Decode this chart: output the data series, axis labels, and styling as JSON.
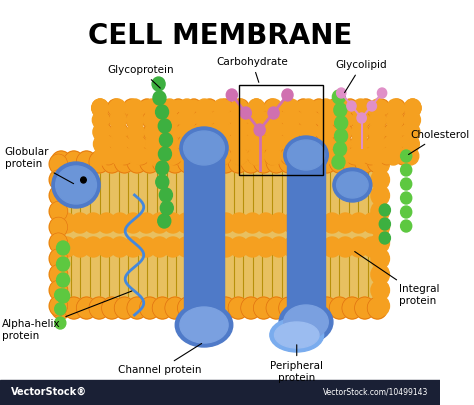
{
  "title": "CELL MEMBRANE",
  "title_fontsize": 20,
  "title_fontweight": "bold",
  "bg_color": "#ffffff",
  "orange_head": "#F5A020",
  "orange_dark": "#E07010",
  "orange_mid": "#F0B030",
  "tail_color": "#D4A855",
  "tail_bg": "#E8C870",
  "protein_blue": "#4F7AC8",
  "protein_blue_light": "#6B95D8",
  "green_chain": "#3DB040",
  "green_bright": "#5DC840",
  "pink_chain": "#D070B0",
  "pink_light": "#E090C8",
  "bottom_bar_color": "#1a2035",
  "vectorstock_text": "VectorStock®",
  "vectorstock_url": "VectorStock.com/10499143",
  "label_fontsize": 7.5
}
